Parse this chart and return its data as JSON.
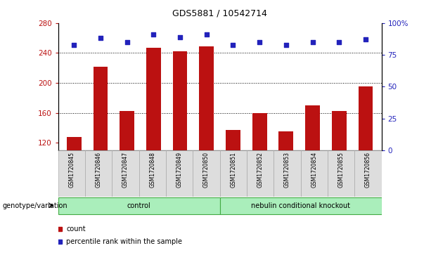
{
  "title": "GDS5881 / 10542714",
  "samples": [
    "GSM1720845",
    "GSM1720846",
    "GSM1720847",
    "GSM1720848",
    "GSM1720849",
    "GSM1720850",
    "GSM1720851",
    "GSM1720852",
    "GSM1720853",
    "GSM1720854",
    "GSM1720855",
    "GSM1720856"
  ],
  "counts": [
    128,
    222,
    163,
    247,
    242,
    249,
    137,
    160,
    135,
    170,
    163,
    195
  ],
  "percentiles": [
    83,
    88,
    85,
    91,
    89,
    91,
    83,
    85,
    83,
    85,
    85,
    87
  ],
  "bar_color": "#BB1111",
  "dot_color": "#2222BB",
  "ylim_left": [
    110,
    280
  ],
  "ylim_right": [
    0,
    100
  ],
  "yticks_left": [
    120,
    160,
    200,
    240,
    280
  ],
  "yticks_right": [
    0,
    25,
    50,
    75,
    100
  ],
  "yticklabels_right": [
    "0",
    "25",
    "50",
    "75",
    "100%"
  ],
  "grid_values": [
    160,
    200,
    240
  ],
  "title_fontsize": 9,
  "xlabel_label": "genotype/variation",
  "legend_count": "count",
  "legend_pct": "percentile rank within the sample",
  "control_color": "#AAEEBB",
  "control_edge": "#44AA44",
  "gray_bg": "#DDDDDD",
  "gray_edge": "#AAAAAA"
}
